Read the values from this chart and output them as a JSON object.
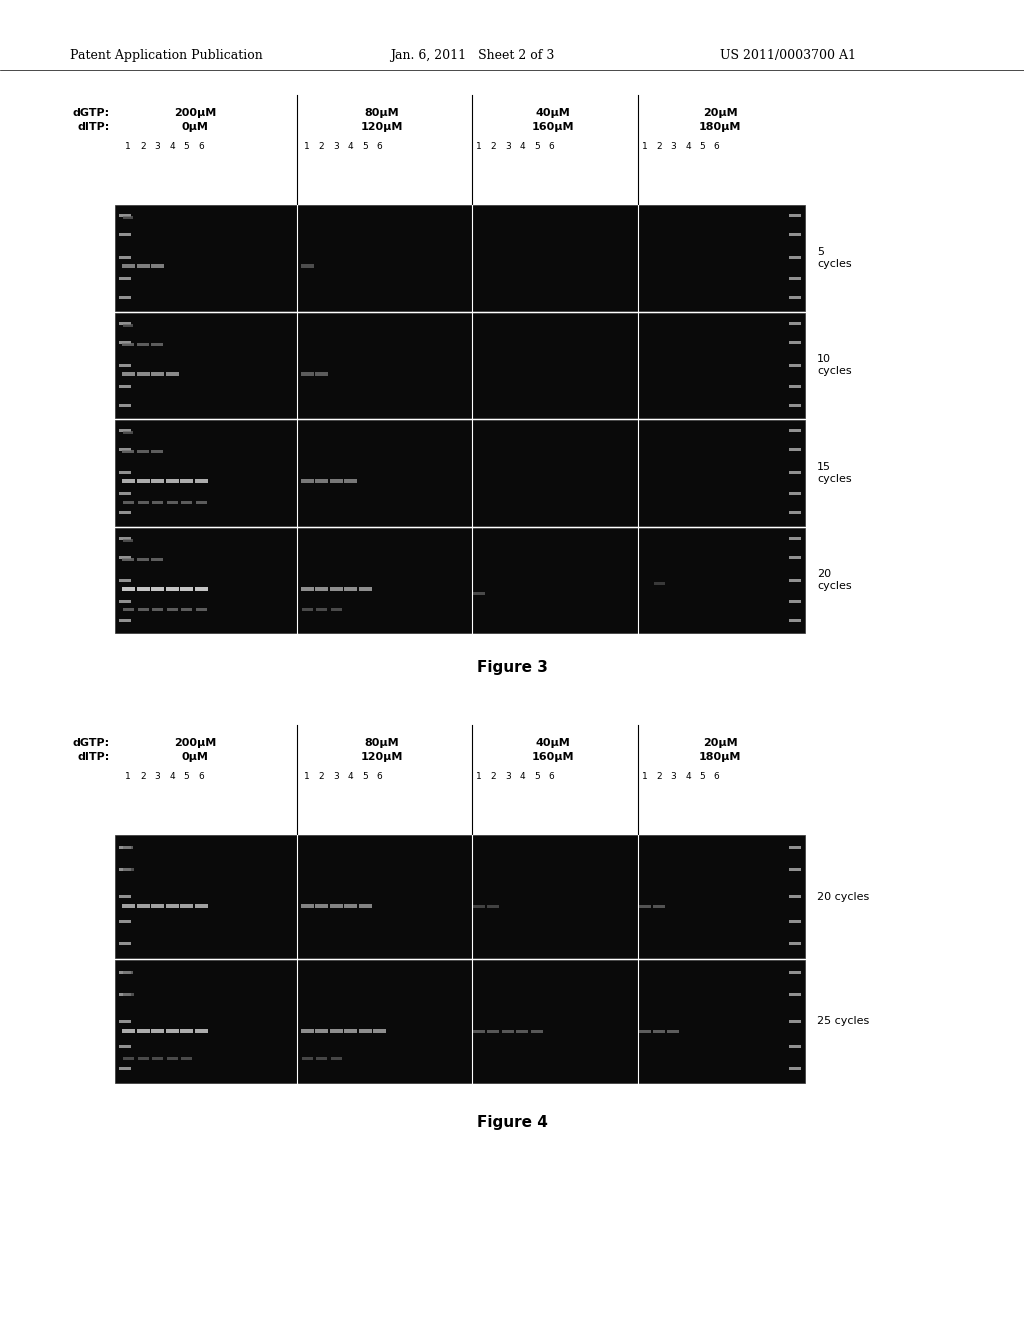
{
  "page_header_left": "Patent Application Publication",
  "page_header_center": "Jan. 6, 2011   Sheet 2 of 3",
  "page_header_right": "US 2011/0003700 A1",
  "fig3_label": "Figure 3",
  "fig4_label": "Figure 4",
  "col_dgtp": [
    "200μM",
    "80μM",
    "40μM",
    "20μM"
  ],
  "col_ditp": [
    "0μM",
    "120μM",
    "160μM",
    "180μM"
  ],
  "fig3_cycle_labels": [
    "5\ncycles",
    "10\ncycles",
    "15\ncycles",
    "20\ncycles"
  ],
  "fig4_cycle_labels": [
    "20 cycles",
    "25 cycles"
  ],
  "page_bg": "#ffffff",
  "gel_bg": "#0a0a0a",
  "divider_color": "#ffffff",
  "band_color_bright": "#cccccc",
  "band_color_mid": "#999999",
  "band_color_dim": "#666666"
}
